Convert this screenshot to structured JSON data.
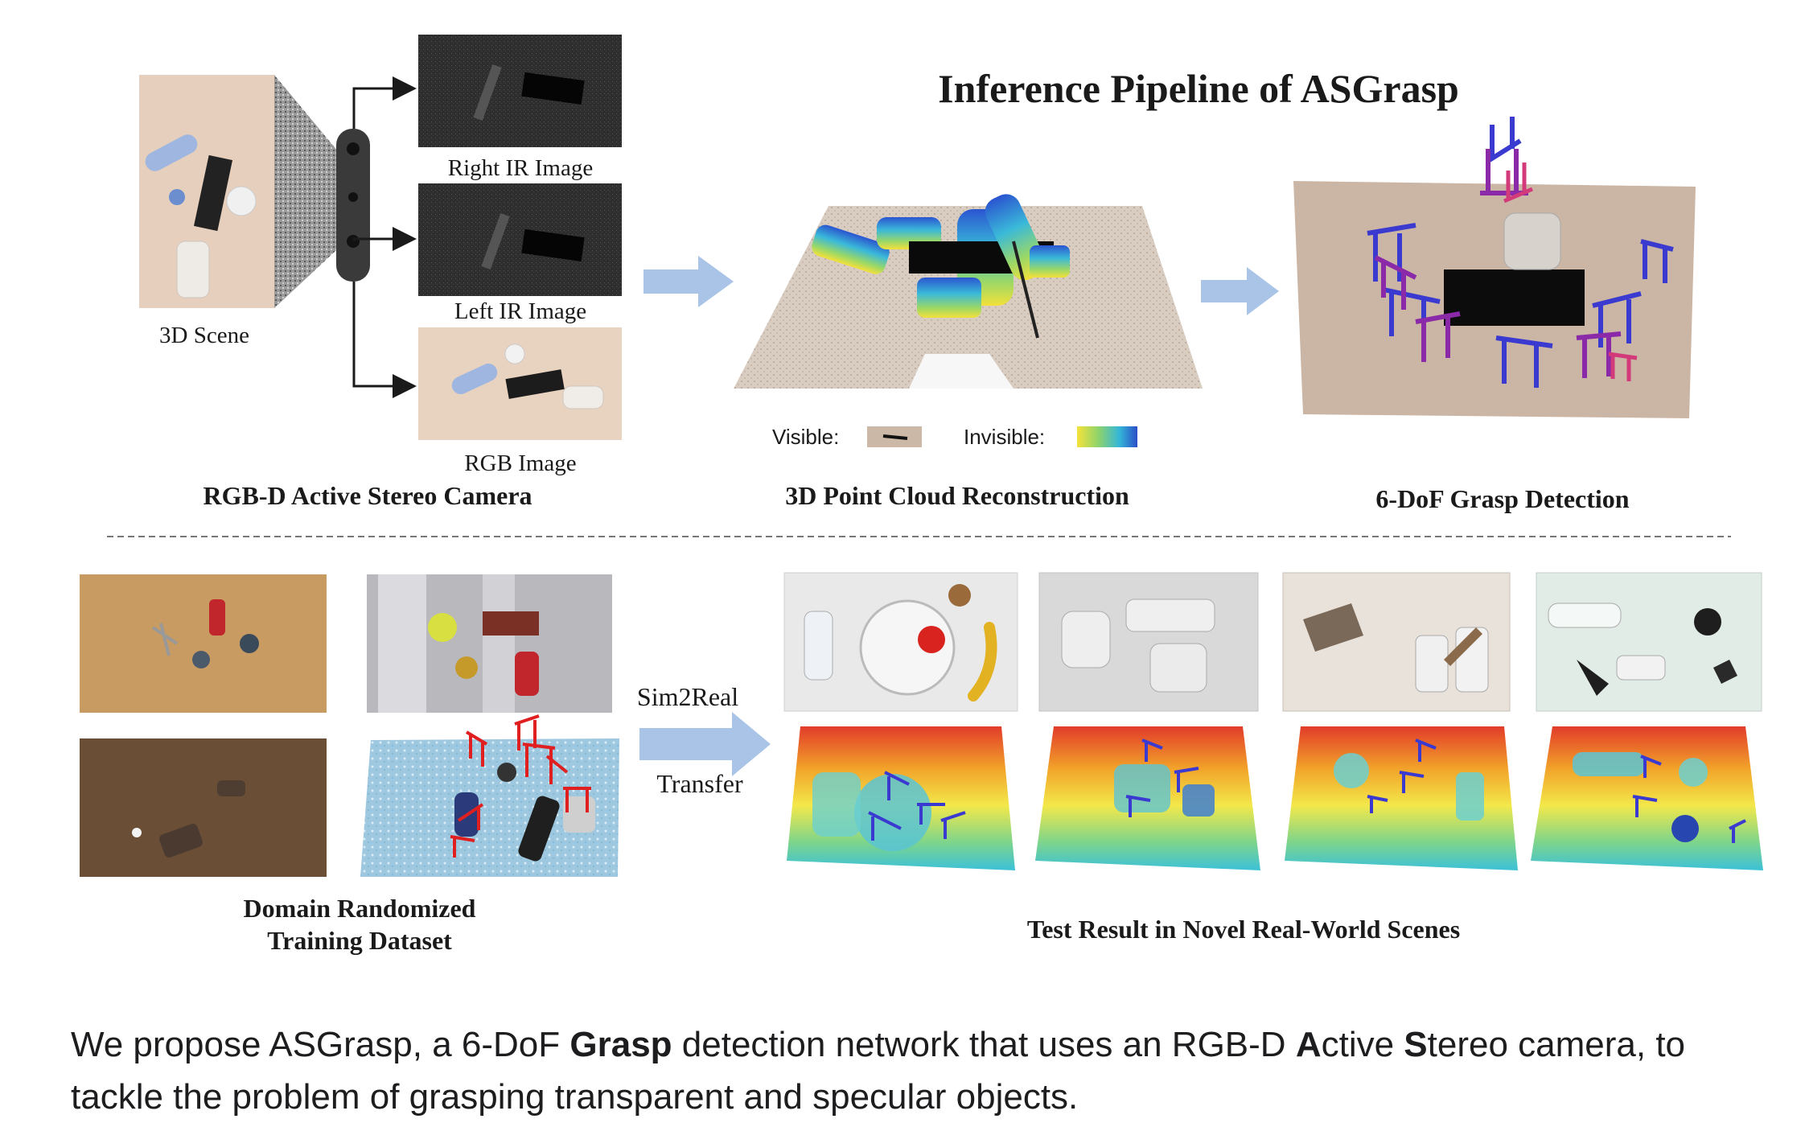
{
  "figure": {
    "title": "Inference Pipeline of ASGrasp",
    "camera": {
      "scene_label": "3D Scene",
      "right_ir_label": "Right IR Image",
      "left_ir_label": "Left IR Image",
      "rgb_label": "RGB Image",
      "section_label": "RGB-D Active Stereo Camera"
    },
    "reconstruction": {
      "visible_label": "Visible:",
      "invisible_label": "Invisible:",
      "section_label": "3D Point Cloud Reconstruction"
    },
    "grasp": {
      "section_label": "6-DoF Grasp Detection"
    },
    "training": {
      "label_line1": "Domain Randomized",
      "label_line2": "Training Dataset"
    },
    "transfer": {
      "line1": "Sim2Real",
      "line2": "Transfer"
    },
    "test": {
      "section_label": "Test Result in Novel Real-World Scenes"
    }
  },
  "caption": {
    "t1": "We propose ASGrasp, a 6-DoF ",
    "b1": "Grasp",
    "t2": " detection network that uses an RGB-D ",
    "b2": "A",
    "t3": "ctive ",
    "b3": "S",
    "t4": "tereo camera, to tackle the problem of grasping transparent and specular objects."
  },
  "colors": {
    "arrow": "#a9c4e6",
    "scene_bg": "#e6cfbd",
    "ir_bg": "#2b2b2b",
    "cloud_surface": "#cbb8a6",
    "grasp_blue": "#3a3ad0",
    "grasp_purple": "#8a2aa8",
    "grasp_red": "#e02020"
  }
}
